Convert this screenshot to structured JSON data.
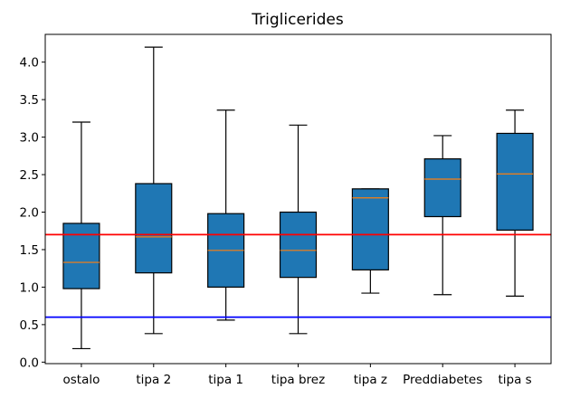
{
  "chart_data": {
    "type": "box",
    "title": "Triglicerides",
    "xlabel": "",
    "ylabel": "",
    "ylim": [
      -0.02,
      4.37
    ],
    "yticks": [
      "0.0",
      "0.5",
      "1.0",
      "1.5",
      "2.0",
      "2.5",
      "3.0",
      "3.5",
      "4.0"
    ],
    "categories": [
      "ostalo",
      "tipa 2",
      "tipa 1",
      "tipa brez",
      "tipa z",
      "Preddiabetes",
      "tipa s"
    ],
    "boxes": [
      {
        "whisker_low": 0.18,
        "q1": 0.98,
        "median": 1.33,
        "q3": 1.85,
        "whisker_high": 3.2
      },
      {
        "whisker_low": 0.38,
        "q1": 1.19,
        "median": 1.67,
        "q3": 2.38,
        "whisker_high": 4.2
      },
      {
        "whisker_low": 0.56,
        "q1": 1.0,
        "median": 1.49,
        "q3": 1.98,
        "whisker_high": 3.36
      },
      {
        "whisker_low": 0.38,
        "q1": 1.13,
        "median": 1.49,
        "q3": 2.0,
        "whisker_high": 3.16
      },
      {
        "whisker_low": 0.92,
        "q1": 1.23,
        "median": 2.19,
        "q3": 2.31,
        "whisker_high": 2.31
      },
      {
        "whisker_low": 0.9,
        "q1": 1.94,
        "median": 2.44,
        "q3": 2.71,
        "whisker_high": 3.02
      },
      {
        "whisker_low": 0.88,
        "q1": 1.76,
        "median": 2.51,
        "q3": 3.05,
        "whisker_high": 3.36
      }
    ],
    "reference_lines": [
      {
        "y": 1.7,
        "color": "#ff0000"
      },
      {
        "y": 0.6,
        "color": "#0000ff"
      }
    ],
    "box_color": "#1f77b4",
    "median_color": "#ff7f0e",
    "grid": false,
    "legend": "none"
  }
}
